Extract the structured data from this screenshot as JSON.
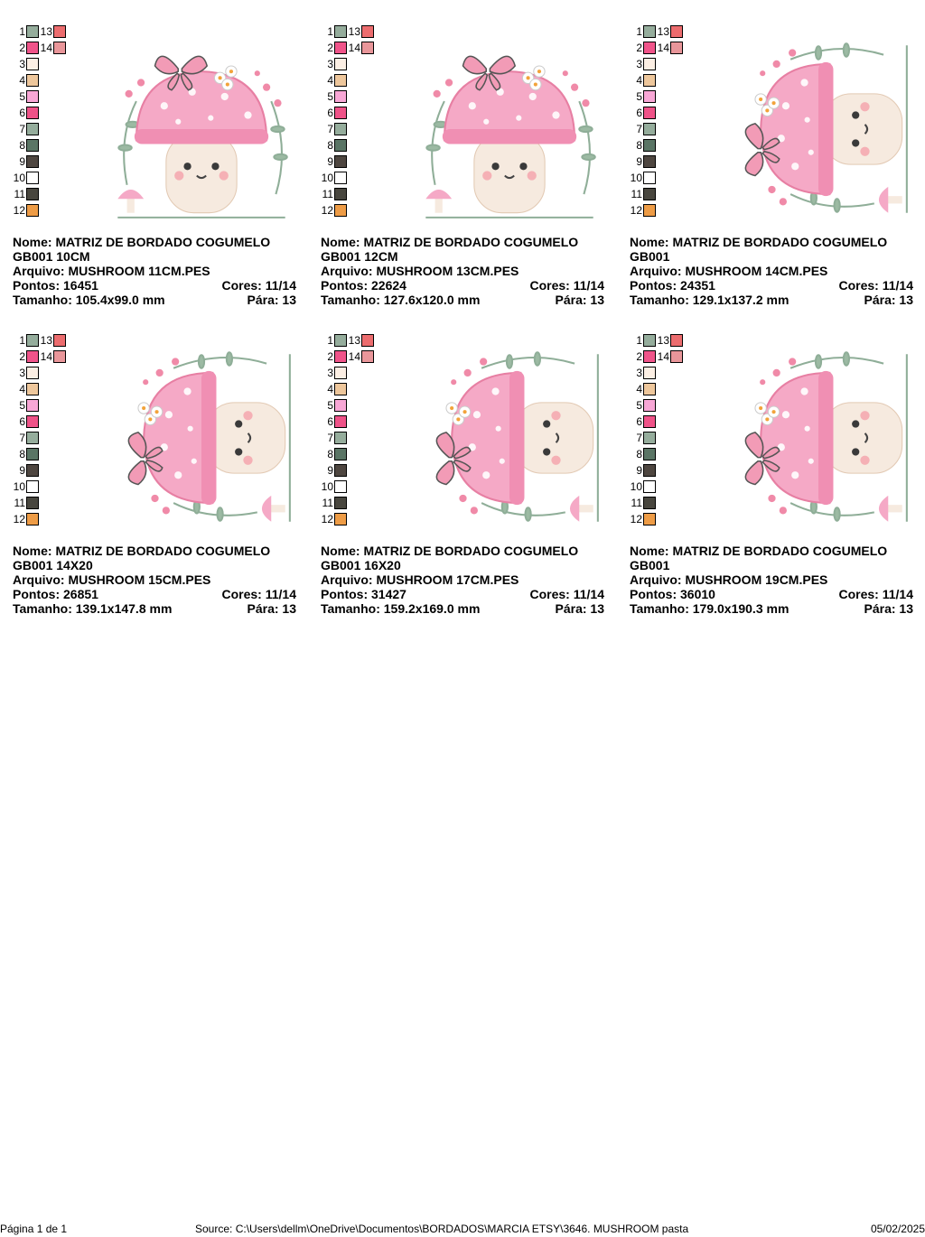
{
  "palette": [
    {
      "n": "1",
      "color": "#95ad9c"
    },
    {
      "n": "2",
      "color": "#f0548a"
    },
    {
      "n": "3",
      "color": "#fcefe4"
    },
    {
      "n": "4",
      "color": "#eec79c"
    },
    {
      "n": "5",
      "color": "#f8a7d6"
    },
    {
      "n": "6",
      "color": "#ef5288"
    },
    {
      "n": "7",
      "color": "#95ad9c"
    },
    {
      "n": "8",
      "color": "#5a7565"
    },
    {
      "n": "9",
      "color": "#4e4640"
    },
    {
      "n": "10",
      "color": "#ffffff"
    },
    {
      "n": "11",
      "color": "#48463e"
    },
    {
      "n": "12",
      "color": "#ee9c46"
    },
    {
      "n": "13",
      "color": "#ec6c6e"
    },
    {
      "n": "14",
      "color": "#e9969a"
    }
  ],
  "labels": {
    "nome": "Nome:",
    "arquivo": "Arquivo:",
    "pontos": "Pontos:",
    "cores": "Cores:",
    "tamanho": "Tamanho:",
    "para": "Pára:"
  },
  "cards": [
    {
      "nome": "MATRIZ DE BORDADO COGUMELO GB001 10CM",
      "arquivo": "MUSHROOM 11CM.PES",
      "pontos": "16451",
      "cores": "11/14",
      "tamanho": "105.4x99.0 mm",
      "para": "13",
      "orientation": "upright"
    },
    {
      "nome": "MATRIZ DE BORDADO COGUMELO GB001 12CM",
      "arquivo": "MUSHROOM 13CM.PES",
      "pontos": "22624",
      "cores": "11/14",
      "tamanho": "127.6x120.0 mm",
      "para": "13",
      "orientation": "upright"
    },
    {
      "nome": "MATRIZ DE BORDADO COGUMELO GB001",
      "arquivo": "MUSHROOM 14CM.PES",
      "pontos": "24351",
      "cores": "11/14",
      "tamanho": "129.1x137.2 mm",
      "para": "13",
      "orientation": "rotated"
    },
    {
      "nome": "MATRIZ DE BORDADO COGUMELO GB001 14X20",
      "arquivo": "MUSHROOM 15CM.PES",
      "pontos": "26851",
      "cores": "11/14",
      "tamanho": "139.1x147.8 mm",
      "para": "13",
      "orientation": "rotated"
    },
    {
      "nome": "MATRIZ DE BORDADO COGUMELO GB001 16X20",
      "arquivo": "MUSHROOM 17CM.PES",
      "pontos": "31427",
      "cores": "11/14",
      "tamanho": "159.2x169.0 mm",
      "para": "13",
      "orientation": "rotated"
    },
    {
      "nome": "MATRIZ DE BORDADO COGUMELO GB001",
      "arquivo": "MUSHROOM 19CM.PES",
      "pontos": "36010",
      "cores": "11/14",
      "tamanho": "179.0x190.3 mm",
      "para": "13",
      "orientation": "rotated"
    }
  ],
  "footer": {
    "page": "Página 1 de 1",
    "source": "Source: C:\\Users\\dellm\\OneDrive\\Documentos\\BORDADOS\\MARCIA ETSY\\3646. MUSHROOM pasta",
    "date": "05/02/2025"
  }
}
